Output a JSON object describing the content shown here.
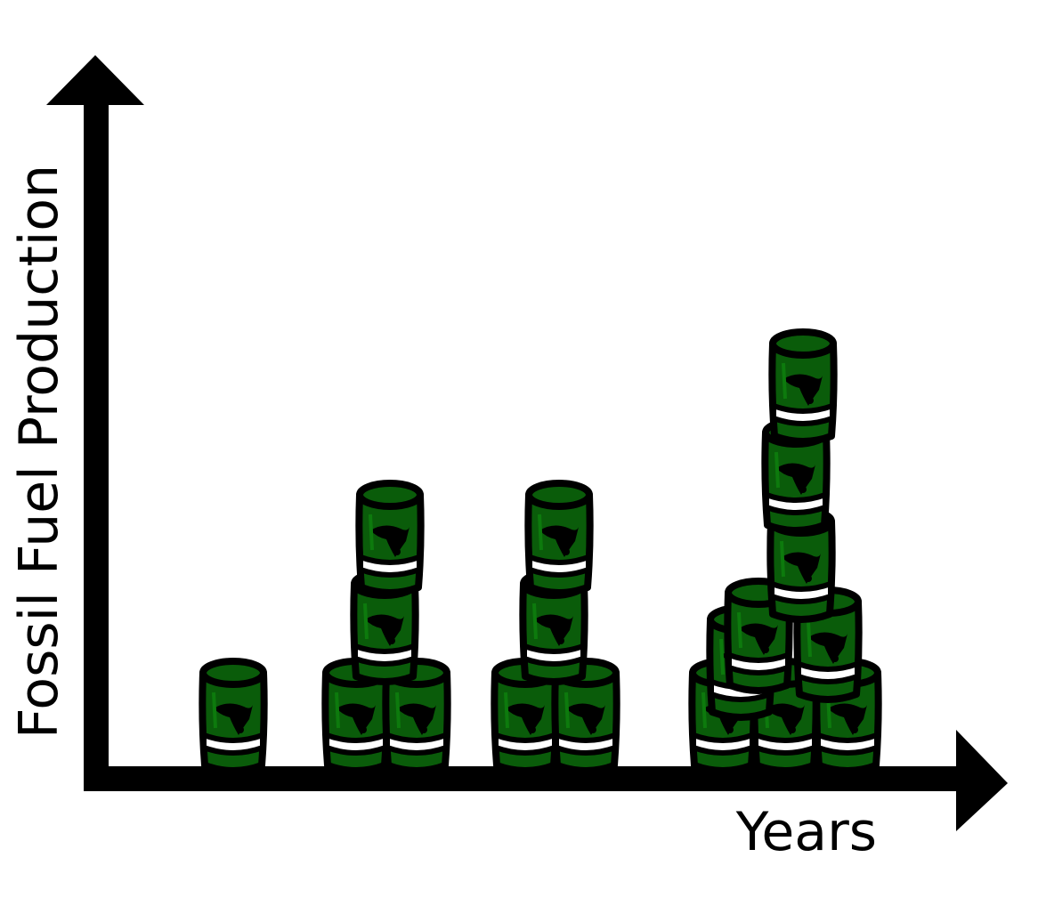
{
  "chart_data": {
    "type": "bar",
    "style": "pictograph (stacked oil barrels)",
    "xlabel": "Years",
    "ylabel": "Fossil Fuel Production",
    "categories": [
      "",
      "",
      "",
      ""
    ],
    "values": [
      1,
      4,
      4,
      9
    ],
    "barrel_color": "#0a5c0a",
    "outline_color": "#000000",
    "grid": false,
    "legend": "none"
  }
}
